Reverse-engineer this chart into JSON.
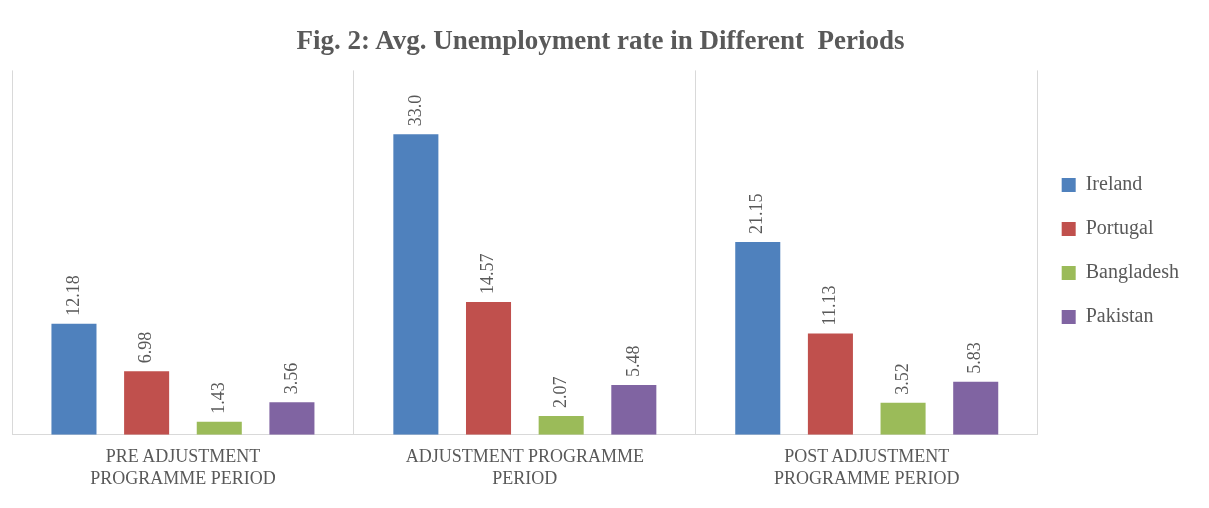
{
  "chart_data": {
    "type": "bar",
    "title": "Fig. 2: Avg. Unemployment rate in Different  Periods",
    "categories": [
      "PRE ADJUSTMENT PROGRAMME PERIOD",
      "ADJUSTMENT PROGRAMME PERIOD",
      "POST ADJUSTMENT PROGRAMME PERIOD"
    ],
    "series": [
      {
        "name": "Ireland",
        "color": "#4f81bd",
        "values": [
          12.18,
          33.0,
          21.15
        ],
        "value_labels": [
          "12.18",
          "33.0",
          "21.15"
        ]
      },
      {
        "name": "Portugal",
        "color": "#c0504d",
        "values": [
          6.98,
          14.57,
          11.13
        ],
        "value_labels": [
          "6.98",
          "14.57",
          "11.13"
        ]
      },
      {
        "name": "Bangladesh",
        "color": "#9bbb59",
        "values": [
          1.43,
          2.07,
          3.52
        ],
        "value_labels": [
          "1.43",
          "2.07",
          "3.52"
        ]
      },
      {
        "name": "Pakistan",
        "color": "#8064a2",
        "values": [
          3.56,
          5.48,
          5.83
        ],
        "value_labels": [
          "3.56",
          "5.48",
          "5.83"
        ]
      }
    ],
    "grid": "x",
    "legend": "right"
  }
}
